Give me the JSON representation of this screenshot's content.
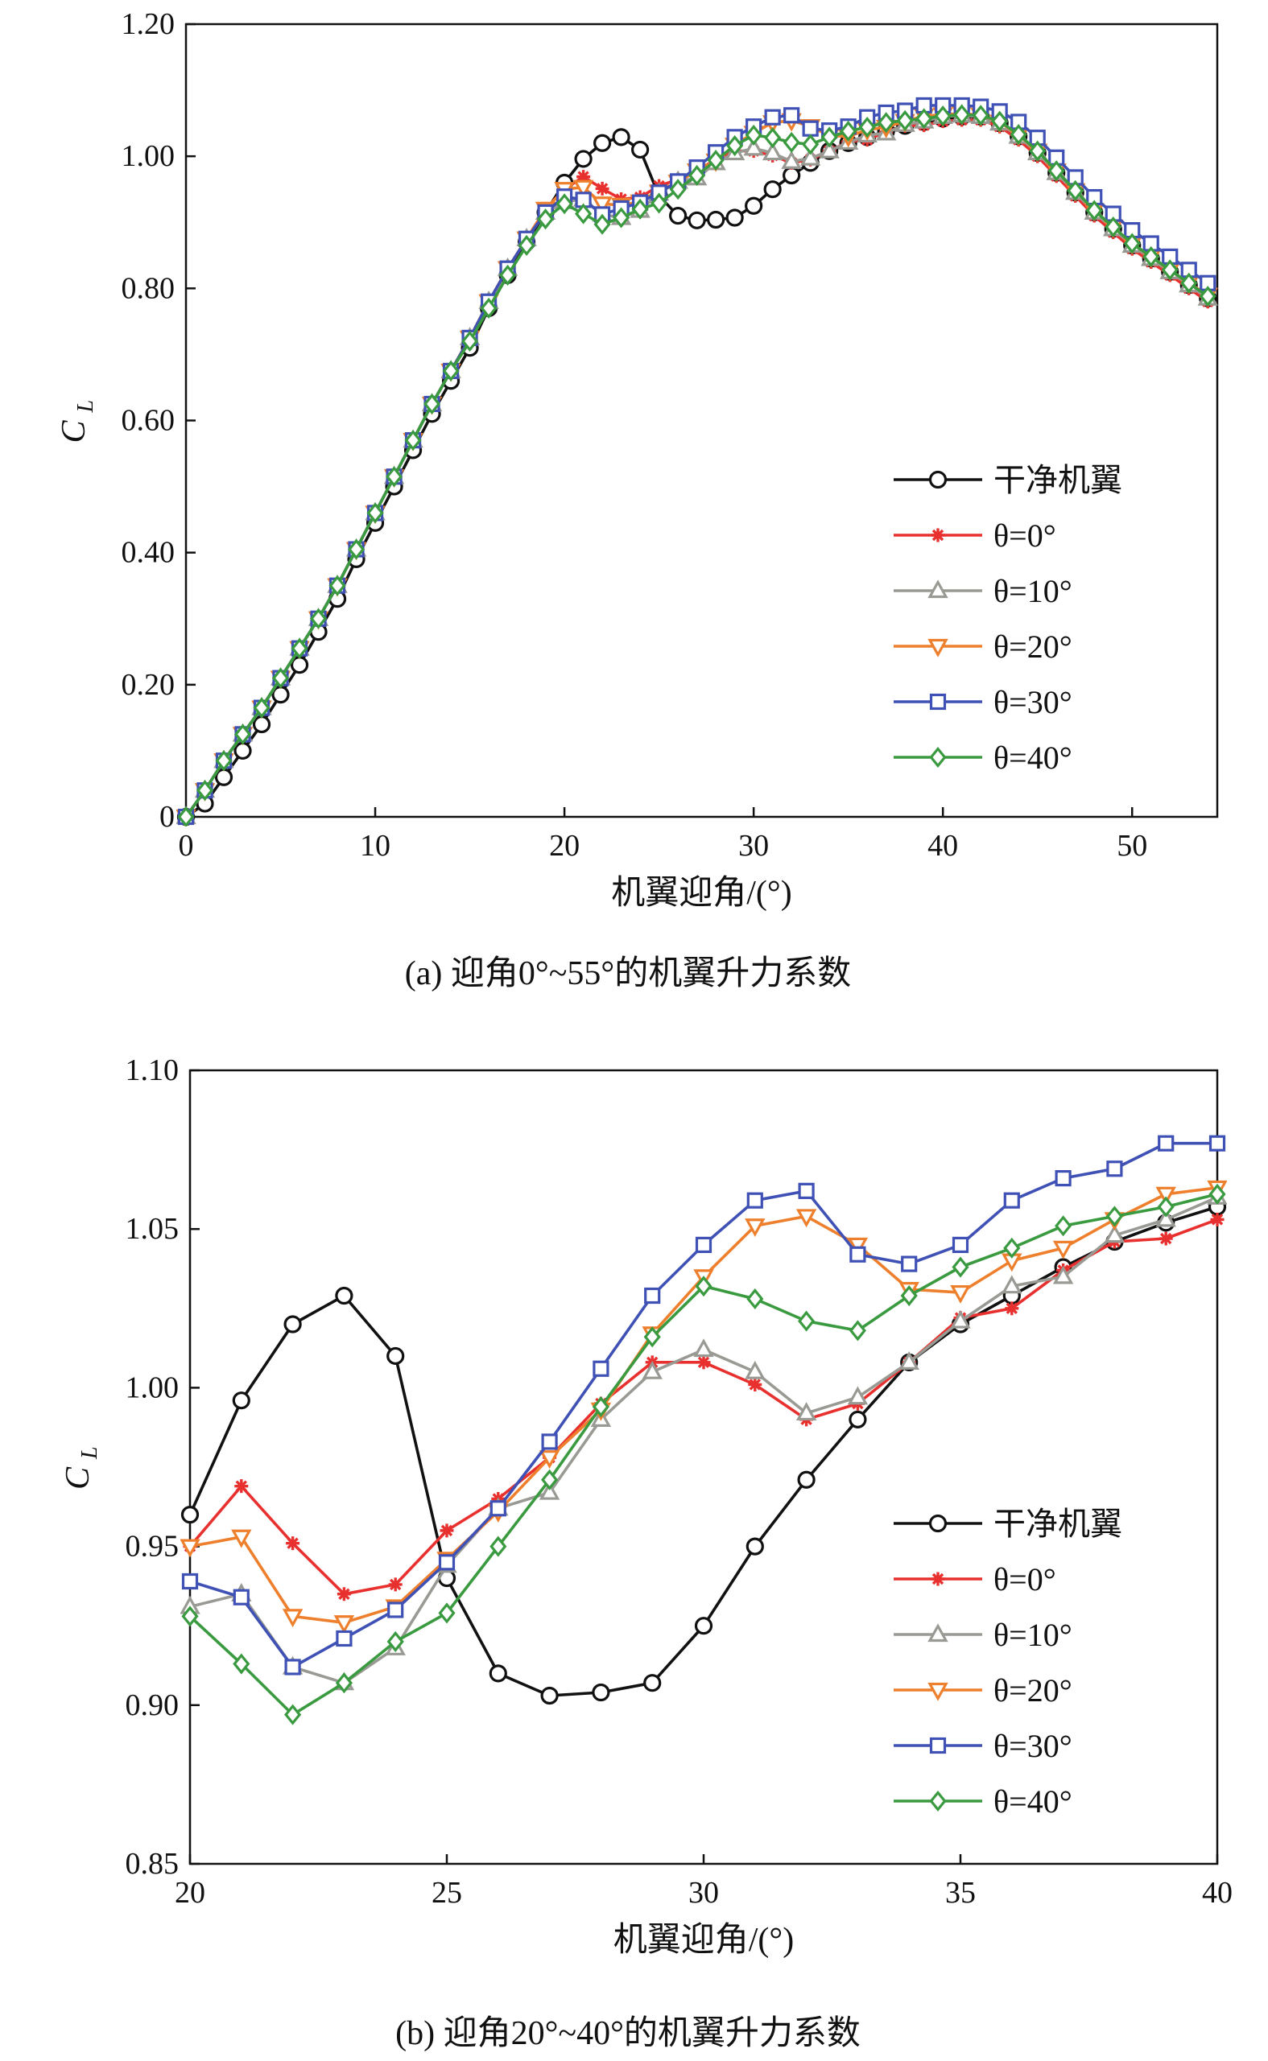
{
  "series_styles": {
    "clean": {
      "color": "#111111",
      "marker": "circle-open"
    },
    "t0": {
      "color": "#e8312f",
      "marker": "asterisk"
    },
    "t10": {
      "color": "#9a9a94",
      "marker": "triangle-up-open"
    },
    "t20": {
      "color": "#ee7f2d",
      "marker": "triangle-down-open"
    },
    "t30": {
      "color": "#3f51b5",
      "marker": "square-open"
    },
    "t40": {
      "color": "#3a9a3f",
      "marker": "diamond-open"
    }
  },
  "chart_data": [
    {
      "type": "line",
      "caption": "(a) 迎角0°~55°的机翼升力系数",
      "xlabel": "机翼迎角/(°)",
      "ylabel_main": "C",
      "ylabel_sub": "L",
      "xlim": [
        0,
        54.5
      ],
      "ylim": [
        0,
        1.2
      ],
      "xticks": [
        0,
        10,
        20,
        30,
        40,
        50
      ],
      "yticks": [
        0,
        0.2,
        0.4,
        0.6,
        0.8,
        1.0,
        1.2
      ],
      "ytick_labels": [
        "0",
        "0.20",
        "0.40",
        "0.60",
        "0.80",
        "1.00",
        "1.20"
      ],
      "legend_position": "bottom-right",
      "series": [
        {
          "key": "clean",
          "name": "干净机翼",
          "x": [
            0,
            1,
            2,
            3,
            4,
            5,
            6,
            7,
            8,
            9,
            10,
            11,
            12,
            13,
            14,
            15,
            16,
            17,
            18,
            19,
            20,
            21,
            22,
            23,
            24,
            25,
            26,
            27,
            28,
            29,
            30,
            31,
            32,
            33,
            34,
            35,
            36,
            37,
            38,
            39,
            40,
            41,
            42,
            43,
            44,
            45,
            46,
            47,
            48,
            49,
            50,
            51,
            52,
            53,
            54
          ],
          "y": [
            0,
            0.02,
            0.06,
            0.1,
            0.14,
            0.185,
            0.23,
            0.28,
            0.33,
            0.39,
            0.445,
            0.5,
            0.555,
            0.61,
            0.66,
            0.71,
            0.77,
            0.82,
            0.87,
            0.915,
            0.96,
            0.996,
            1.02,
            1.029,
            1.01,
            0.94,
            0.91,
            0.903,
            0.904,
            0.907,
            0.925,
            0.95,
            0.971,
            0.99,
            1.008,
            1.02,
            1.029,
            1.038,
            1.046,
            1.052,
            1.057,
            1.06,
            1.06,
            1.05,
            1.03,
            1.005,
            0.975,
            0.945,
            0.915,
            0.89,
            0.865,
            0.845,
            0.825,
            0.805,
            0.785
          ]
        },
        {
          "key": "t0",
          "name": "θ=0°",
          "x": [
            0,
            1,
            2,
            3,
            4,
            5,
            6,
            7,
            8,
            9,
            10,
            11,
            12,
            13,
            14,
            15,
            16,
            17,
            18,
            19,
            20,
            21,
            22,
            23,
            24,
            25,
            26,
            27,
            28,
            29,
            30,
            31,
            32,
            33,
            34,
            35,
            36,
            37,
            38,
            39,
            40,
            41,
            42,
            43,
            44,
            45,
            46,
            47,
            48,
            49,
            50,
            51,
            52,
            53,
            54
          ],
          "y": [
            0,
            0.04,
            0.085,
            0.125,
            0.165,
            0.21,
            0.255,
            0.3,
            0.35,
            0.405,
            0.46,
            0.515,
            0.57,
            0.625,
            0.675,
            0.725,
            0.78,
            0.83,
            0.875,
            0.92,
            0.95,
            0.969,
            0.951,
            0.935,
            0.938,
            0.955,
            0.965,
            0.978,
            0.995,
            1.008,
            1.008,
            1.001,
            0.99,
            0.995,
            1.008,
            1.022,
            1.025,
            1.037,
            1.046,
            1.047,
            1.053,
            1.055,
            1.055,
            1.045,
            1.025,
            1.0,
            0.97,
            0.94,
            0.91,
            0.885,
            0.86,
            0.84,
            0.82,
            0.8,
            0.78
          ]
        },
        {
          "key": "t10",
          "name": "θ=10°",
          "x": [
            0,
            1,
            2,
            3,
            4,
            5,
            6,
            7,
            8,
            9,
            10,
            11,
            12,
            13,
            14,
            15,
            16,
            17,
            18,
            19,
            20,
            21,
            22,
            23,
            24,
            25,
            26,
            27,
            28,
            29,
            30,
            31,
            32,
            33,
            34,
            35,
            36,
            37,
            38,
            39,
            40,
            41,
            42,
            43,
            44,
            45,
            46,
            47,
            48,
            49,
            50,
            51,
            52,
            53,
            54
          ],
          "y": [
            0,
            0.04,
            0.085,
            0.125,
            0.165,
            0.21,
            0.255,
            0.3,
            0.35,
            0.405,
            0.46,
            0.515,
            0.57,
            0.625,
            0.675,
            0.725,
            0.78,
            0.83,
            0.875,
            0.915,
            0.931,
            0.935,
            0.912,
            0.907,
            0.918,
            0.944,
            0.962,
            0.967,
            0.99,
            1.005,
            1.012,
            1.005,
            0.992,
            0.997,
            1.008,
            1.021,
            1.032,
            1.035,
            1.048,
            1.053,
            1.06,
            1.062,
            1.06,
            1.05,
            1.03,
            1.005,
            0.975,
            0.945,
            0.915,
            0.89,
            0.865,
            0.845,
            0.825,
            0.805,
            0.785
          ]
        },
        {
          "key": "t20",
          "name": "θ=20°",
          "x": [
            0,
            1,
            2,
            3,
            4,
            5,
            6,
            7,
            8,
            9,
            10,
            11,
            12,
            13,
            14,
            15,
            16,
            17,
            18,
            19,
            20,
            21,
            22,
            23,
            24,
            25,
            26,
            27,
            28,
            29,
            30,
            31,
            32,
            33,
            34,
            35,
            36,
            37,
            38,
            39,
            40,
            41,
            42,
            43,
            44,
            45,
            46,
            47,
            48,
            49,
            50,
            51,
            52,
            53,
            54
          ],
          "y": [
            0,
            0.04,
            0.085,
            0.125,
            0.165,
            0.21,
            0.255,
            0.3,
            0.35,
            0.405,
            0.46,
            0.515,
            0.57,
            0.625,
            0.675,
            0.725,
            0.78,
            0.83,
            0.875,
            0.92,
            0.95,
            0.953,
            0.928,
            0.926,
            0.931,
            0.946,
            0.961,
            0.978,
            0.993,
            1.017,
            1.035,
            1.051,
            1.054,
            1.045,
            1.031,
            1.03,
            1.04,
            1.044,
            1.053,
            1.061,
            1.063,
            1.065,
            1.062,
            1.052,
            1.032,
            1.008,
            0.978,
            0.948,
            0.918,
            0.893,
            0.868,
            0.848,
            0.828,
            0.808,
            0.79
          ]
        },
        {
          "key": "t30",
          "name": "θ=30°",
          "x": [
            0,
            1,
            2,
            3,
            4,
            5,
            6,
            7,
            8,
            9,
            10,
            11,
            12,
            13,
            14,
            15,
            16,
            17,
            18,
            19,
            20,
            21,
            22,
            23,
            24,
            25,
            26,
            27,
            28,
            29,
            30,
            31,
            32,
            33,
            34,
            35,
            36,
            37,
            38,
            39,
            40,
            41,
            42,
            43,
            44,
            45,
            46,
            47,
            48,
            49,
            50,
            51,
            52,
            53,
            54
          ],
          "y": [
            0,
            0.04,
            0.085,
            0.125,
            0.165,
            0.21,
            0.255,
            0.3,
            0.35,
            0.405,
            0.46,
            0.515,
            0.57,
            0.625,
            0.675,
            0.725,
            0.78,
            0.83,
            0.875,
            0.915,
            0.939,
            0.934,
            0.912,
            0.921,
            0.93,
            0.945,
            0.962,
            0.983,
            1.006,
            1.029,
            1.045,
            1.059,
            1.062,
            1.042,
            1.039,
            1.045,
            1.059,
            1.066,
            1.069,
            1.077,
            1.077,
            1.077,
            1.075,
            1.068,
            1.052,
            1.028,
            0.998,
            0.968,
            0.938,
            0.913,
            0.888,
            0.868,
            0.848,
            0.828,
            0.808
          ]
        },
        {
          "key": "t40",
          "name": "θ=40°",
          "x": [
            0,
            1,
            2,
            3,
            4,
            5,
            6,
            7,
            8,
            9,
            10,
            11,
            12,
            13,
            14,
            15,
            16,
            17,
            18,
            19,
            20,
            21,
            22,
            23,
            24,
            25,
            26,
            27,
            28,
            29,
            30,
            31,
            32,
            33,
            34,
            35,
            36,
            37,
            38,
            39,
            40,
            41,
            42,
            43,
            44,
            45,
            46,
            47,
            48,
            49,
            50,
            51,
            52,
            53,
            54
          ],
          "y": [
            0,
            0.04,
            0.085,
            0.125,
            0.165,
            0.21,
            0.255,
            0.3,
            0.35,
            0.405,
            0.46,
            0.515,
            0.57,
            0.625,
            0.675,
            0.72,
            0.77,
            0.82,
            0.865,
            0.905,
            0.928,
            0.913,
            0.897,
            0.907,
            0.92,
            0.929,
            0.95,
            0.971,
            0.994,
            1.016,
            1.032,
            1.028,
            1.021,
            1.018,
            1.029,
            1.038,
            1.044,
            1.051,
            1.054,
            1.057,
            1.061,
            1.063,
            1.062,
            1.053,
            1.033,
            1.008,
            0.978,
            0.948,
            0.918,
            0.893,
            0.868,
            0.848,
            0.828,
            0.808,
            0.788
          ]
        }
      ]
    },
    {
      "type": "line",
      "caption": "(b) 迎角20°~40°的机翼升力系数",
      "xlabel": "机翼迎角/(°)",
      "ylabel_main": "C",
      "ylabel_sub": "L",
      "xlim": [
        20,
        40
      ],
      "ylim": [
        0.85,
        1.1
      ],
      "xticks": [
        20,
        25,
        30,
        35,
        40
      ],
      "yticks": [
        0.85,
        0.9,
        0.95,
        1.0,
        1.05,
        1.1
      ],
      "ytick_labels": [
        "0.85",
        "0.90",
        "0.95",
        "1.00",
        "1.05",
        "1.10"
      ],
      "legend_position": "bottom-right",
      "series": [
        {
          "key": "clean",
          "name": "干净机翼",
          "x": [
            20,
            21,
            22,
            23,
            24,
            25,
            26,
            27,
            28,
            29,
            30,
            31,
            32,
            33,
            34,
            35,
            36,
            37,
            38,
            39,
            40
          ],
          "y": [
            0.96,
            0.996,
            1.02,
            1.029,
            1.01,
            0.94,
            0.91,
            0.903,
            0.904,
            0.907,
            0.925,
            0.95,
            0.971,
            0.99,
            1.008,
            1.02,
            1.029,
            1.038,
            1.046,
            1.052,
            1.057
          ]
        },
        {
          "key": "t0",
          "name": "θ=0°",
          "x": [
            20,
            21,
            22,
            23,
            24,
            25,
            26,
            27,
            28,
            29,
            30,
            31,
            32,
            33,
            34,
            35,
            36,
            37,
            38,
            39,
            40
          ],
          "y": [
            0.95,
            0.969,
            0.951,
            0.935,
            0.938,
            0.955,
            0.965,
            0.978,
            0.995,
            1.008,
            1.008,
            1.001,
            0.99,
            0.995,
            1.008,
            1.022,
            1.025,
            1.037,
            1.046,
            1.047,
            1.053
          ]
        },
        {
          "key": "t10",
          "name": "θ=10°",
          "x": [
            20,
            21,
            22,
            23,
            24,
            25,
            26,
            27,
            28,
            29,
            30,
            31,
            32,
            33,
            34,
            35,
            36,
            37,
            38,
            39,
            40
          ],
          "y": [
            0.931,
            0.935,
            0.912,
            0.907,
            0.918,
            0.944,
            0.962,
            0.967,
            0.99,
            1.005,
            1.012,
            1.005,
            0.992,
            0.997,
            1.008,
            1.021,
            1.032,
            1.035,
            1.048,
            1.053,
            1.06
          ]
        },
        {
          "key": "t20",
          "name": "θ=20°",
          "x": [
            20,
            21,
            22,
            23,
            24,
            25,
            26,
            27,
            28,
            29,
            30,
            31,
            32,
            33,
            34,
            35,
            36,
            37,
            38,
            39,
            40
          ],
          "y": [
            0.95,
            0.953,
            0.928,
            0.926,
            0.931,
            0.946,
            0.961,
            0.978,
            0.993,
            1.017,
            1.035,
            1.051,
            1.054,
            1.045,
            1.031,
            1.03,
            1.04,
            1.044,
            1.053,
            1.061,
            1.063
          ]
        },
        {
          "key": "t30",
          "name": "θ=30°",
          "x": [
            20,
            21,
            22,
            23,
            24,
            25,
            26,
            27,
            28,
            29,
            30,
            31,
            32,
            33,
            34,
            35,
            36,
            37,
            38,
            39,
            40
          ],
          "y": [
            0.939,
            0.934,
            0.912,
            0.921,
            0.93,
            0.945,
            0.962,
            0.983,
            1.006,
            1.029,
            1.045,
            1.059,
            1.062,
            1.042,
            1.039,
            1.045,
            1.059,
            1.066,
            1.069,
            1.077,
            1.077
          ]
        },
        {
          "key": "t40",
          "name": "θ=40°",
          "x": [
            20,
            21,
            22,
            23,
            24,
            25,
            26,
            27,
            28,
            29,
            30,
            31,
            32,
            33,
            34,
            35,
            36,
            37,
            38,
            39,
            40
          ],
          "y": [
            0.928,
            0.913,
            0.897,
            0.907,
            0.92,
            0.929,
            0.95,
            0.971,
            0.994,
            1.016,
            1.032,
            1.028,
            1.021,
            1.018,
            1.029,
            1.038,
            1.044,
            1.051,
            1.054,
            1.057,
            1.061
          ]
        }
      ]
    }
  ]
}
